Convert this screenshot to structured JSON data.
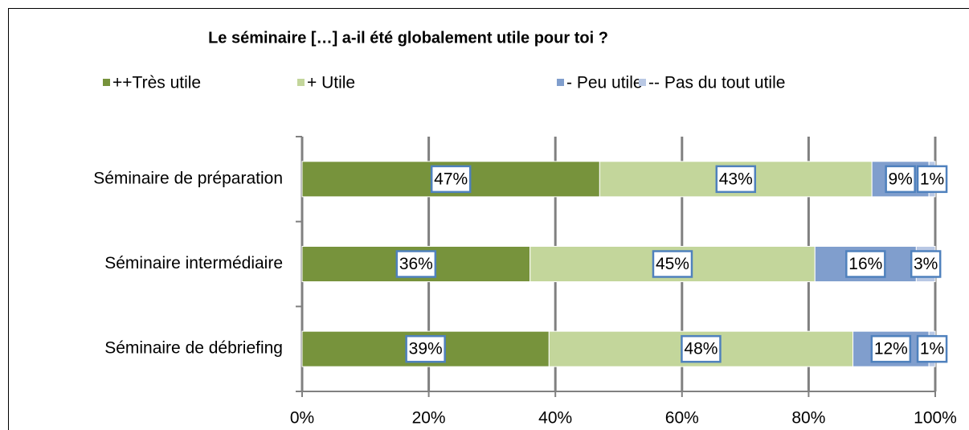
{
  "chart_data": {
    "type": "stacked-bar-horizontal",
    "title": "Le séminaire […] a-il été globalement utile pour toi ?",
    "categories": [
      "Séminaire de préparation",
      "Séminaire intermédiaire",
      "Séminaire de débriefing"
    ],
    "series": [
      {
        "name": "++Très utile",
        "color": "#77933c",
        "values": [
          47,
          36,
          39
        ],
        "value_labels": [
          "47%",
          "36%",
          "39%"
        ]
      },
      {
        "name": "+ Utile",
        "color": "#c3d69b",
        "values": [
          43,
          45,
          48
        ],
        "value_labels": [
          "43%",
          "45%",
          "48%"
        ]
      },
      {
        "name": "- Peu utile",
        "color": "#809ecd",
        "values": [
          9,
          16,
          12
        ],
        "value_labels": [
          "9%",
          "16%",
          "12%"
        ]
      },
      {
        "name": "-- Pas du tout utile",
        "color": "#b9c8e4",
        "values": [
          1,
          3,
          1
        ],
        "value_labels": [
          "1%",
          "3%",
          "1%"
        ]
      }
    ],
    "xlim": [
      0,
      100
    ],
    "xticks": [
      {
        "value": 0,
        "label": "0%"
      },
      {
        "value": 20,
        "label": "20%"
      },
      {
        "value": 40,
        "label": "40%"
      },
      {
        "value": 60,
        "label": "60%"
      },
      {
        "value": 80,
        "label": "80%"
      },
      {
        "value": 100,
        "label": "100%"
      }
    ],
    "grid": true,
    "legend": "top"
  }
}
